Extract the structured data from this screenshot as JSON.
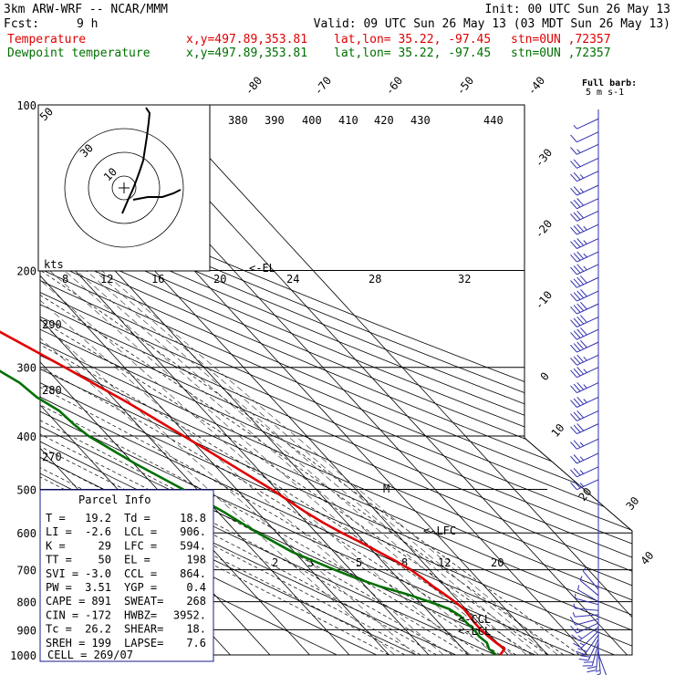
{
  "header": {
    "model": "3km ARW-WRF -- NCAR/MMM",
    "init": "Init: 00 UTC Sun 26 May 13",
    "fcst_label": "Fcst:",
    "fcst_value": "9 h",
    "valid": "Valid: 09 UTC Sun 26 May 13 (03 MDT Sun 26 May 13)",
    "line_temp": {
      "name": "Temperature",
      "xy": "x,y=497.89,353.81",
      "latlon": "lat,lon= 35.22, -97.45",
      "stn": "stn=0UN ,72357"
    },
    "line_dew": {
      "name": "Dewpoint temperature",
      "xy": "x,y=497.89,353.81",
      "latlon": "lat,lon= 35.22, -97.45",
      "stn": "stn=0UN ,72357"
    }
  },
  "colors": {
    "temperature": "#e00000",
    "dewpoint": "#007000",
    "annot": "#1a1a8c",
    "wind": "#3030b0"
  },
  "barb_legend": {
    "line1": "Full barb:",
    "line2": "5 m s-1"
  },
  "parcel_info": {
    "title": "Parcel Info",
    "rows": [
      [
        "T   =",
        "19.2",
        "Td  =",
        "18.8"
      ],
      [
        "LI  =",
        "-2.6",
        "LCL =",
        "906."
      ],
      [
        "K   =",
        "29",
        "LFC =",
        "594."
      ],
      [
        "TT  =",
        "50",
        "EL  =",
        "198"
      ],
      [
        "SVI =",
        "-3.0",
        "CCL =",
        "864."
      ],
      [
        "PW  =",
        "3.51",
        "YGP =",
        "0.4"
      ],
      [
        "CAPE =",
        "891",
        "SWEAT=",
        "268"
      ],
      [
        "CIN =",
        "-172",
        "HWBZ=",
        "3952."
      ],
      [
        "Tc  =",
        "26.2",
        "SHEAR=",
        "18."
      ],
      [
        "SREH =",
        "199",
        "LAPSE=",
        "7.6"
      ]
    ],
    "cell": "CELL = 269/07"
  },
  "hodograph": {
    "ring_labels": [
      "50",
      "30",
      "10"
    ],
    "kts_label": "kts"
  },
  "markers": {
    "el": "<-EL",
    "lfc": "<-LFC",
    "ccl": "<-CCL",
    "lcl": "<-LCL",
    "m": "M"
  },
  "theta_e_labels": [
    "380",
    "390",
    "400",
    "410",
    "420",
    "430",
    "440"
  ],
  "mixing_ratio_labels_top": [
    "8",
    "12",
    "16",
    "20",
    "24",
    "28",
    "32"
  ],
  "mixing_ratio_labels_low": [
    "2",
    "3",
    "5",
    "8",
    "12",
    "20"
  ],
  "theta_labels_left": [
    "290",
    "280",
    "270"
  ],
  "skew_labels_top": [
    "-80",
    "-70",
    "-60",
    "-50",
    "-40"
  ],
  "skew_labels_right": [
    "-30",
    "-20",
    "-10",
    "0",
    "10",
    "20",
    "30",
    "40"
  ],
  "chart_data": {
    "type": "line",
    "title": "",
    "xlabel": "",
    "ylabel": "",
    "y_scale": "log-pressure",
    "y_ticks": [
      100,
      200,
      300,
      400,
      500,
      600,
      700,
      800,
      900,
      1000
    ],
    "series": [
      {
        "name": "Temperature",
        "color": "#e00000",
        "points": [
          [
            1000,
            18.0
          ],
          [
            975,
            20.5
          ],
          [
            950,
            19.8
          ],
          [
            925,
            19.3
          ],
          [
            900,
            19.0
          ],
          [
            875,
            19.0
          ],
          [
            850,
            19.3
          ],
          [
            825,
            19.5
          ],
          [
            800,
            18.9
          ],
          [
            775,
            18.0
          ],
          [
            750,
            17.0
          ],
          [
            725,
            16.2
          ],
          [
            700,
            15.2
          ],
          [
            675,
            13.5
          ],
          [
            650,
            11.3
          ],
          [
            625,
            9.0
          ],
          [
            600,
            6.4
          ],
          [
            575,
            4.1
          ],
          [
            550,
            2.1
          ],
          [
            525,
            0.5
          ],
          [
            500,
            -1.2
          ],
          [
            450,
            -5.8
          ],
          [
            400,
            -11.0
          ],
          [
            350,
            -17.0
          ],
          [
            300,
            -25.0
          ],
          [
            250,
            -35.0
          ],
          [
            225,
            -41.0
          ],
          [
            200,
            -49.0
          ],
          [
            190,
            -51.0
          ],
          [
            175,
            -51.2
          ],
          [
            160,
            -49.5
          ],
          [
            150,
            -48.3
          ],
          [
            130,
            -47.8
          ],
          [
            110,
            -47.4
          ],
          [
            100,
            -47.2
          ]
        ]
      },
      {
        "name": "Dewpoint temperature",
        "color": "#007000",
        "points": [
          [
            1000,
            17.0
          ],
          [
            975,
            16.6
          ],
          [
            950,
            17.5
          ],
          [
            925,
            17.0
          ],
          [
            900,
            17.3
          ],
          [
            875,
            17.0
          ],
          [
            850,
            17.0
          ],
          [
            825,
            15.8
          ],
          [
            800,
            12.5
          ],
          [
            775,
            8.5
          ],
          [
            750,
            3.5
          ],
          [
            725,
            -0.5
          ],
          [
            700,
            -4.0
          ],
          [
            650,
            -10.5
          ],
          [
            600,
            -14.8
          ],
          [
            550,
            -18.5
          ],
          [
            500,
            -23.5
          ],
          [
            450,
            -29.5
          ],
          [
            400,
            -35.0
          ],
          [
            380,
            -36.0
          ],
          [
            360,
            -36.5
          ],
          [
            340,
            -39.0
          ],
          [
            320,
            -40.0
          ],
          [
            300,
            -43.0
          ],
          [
            250,
            -58.0
          ],
          [
            220,
            -65.0
          ],
          [
            200,
            -66.0
          ],
          [
            180,
            -67.0
          ],
          [
            160,
            -67.5
          ],
          [
            140,
            -71.0
          ],
          [
            120,
            -76.0
          ],
          [
            100,
            -83.0
          ]
        ]
      }
    ],
    "winds": [
      {
        "p": 995,
        "speed_ms": 6,
        "dir_deg": 160
      },
      {
        "p": 980,
        "speed_ms": 8,
        "dir_deg": 175
      },
      {
        "p": 965,
        "speed_ms": 10,
        "dir_deg": 185
      },
      {
        "p": 950,
        "speed_ms": 11,
        "dir_deg": 195
      },
      {
        "p": 935,
        "speed_ms": 11,
        "dir_deg": 205
      },
      {
        "p": 920,
        "speed_ms": 10,
        "dir_deg": 215
      },
      {
        "p": 905,
        "speed_ms": 9,
        "dir_deg": 225
      },
      {
        "p": 890,
        "speed_ms": 8,
        "dir_deg": 235
      },
      {
        "p": 875,
        "speed_ms": 7,
        "dir_deg": 245
      },
      {
        "p": 860,
        "speed_ms": 5,
        "dir_deg": 255
      },
      {
        "p": 845,
        "speed_ms": 4,
        "dir_deg": 265
      },
      {
        "p": 830,
        "speed_ms": 3,
        "dir_deg": 275
      },
      {
        "p": 810,
        "speed_ms": 3,
        "dir_deg": 285
      },
      {
        "p": 800,
        "speed_ms": 3,
        "dir_deg": 300
      },
      {
        "p": 780,
        "speed_ms": 2,
        "dir_deg": 310
      },
      {
        "p": 760,
        "speed_ms": 2,
        "dir_deg": 320
      },
      {
        "p": 480,
        "speed_ms": 12,
        "dir_deg": 245
      },
      {
        "p": 455,
        "speed_ms": 12,
        "dir_deg": 245
      },
      {
        "p": 430,
        "speed_ms": 13,
        "dir_deg": 245
      },
      {
        "p": 405,
        "speed_ms": 14,
        "dir_deg": 245
      },
      {
        "p": 380,
        "speed_ms": 15,
        "dir_deg": 245
      },
      {
        "p": 360,
        "speed_ms": 16,
        "dir_deg": 245
      },
      {
        "p": 340,
        "speed_ms": 17,
        "dir_deg": 245
      },
      {
        "p": 320,
        "speed_ms": 18,
        "dir_deg": 245
      },
      {
        "p": 300,
        "speed_ms": 19,
        "dir_deg": 245
      },
      {
        "p": 285,
        "speed_ms": 19,
        "dir_deg": 245
      },
      {
        "p": 270,
        "speed_ms": 20,
        "dir_deg": 245
      },
      {
        "p": 256,
        "speed_ms": 20,
        "dir_deg": 245
      },
      {
        "p": 243,
        "speed_ms": 20,
        "dir_deg": 245
      },
      {
        "p": 230,
        "speed_ms": 20,
        "dir_deg": 245
      },
      {
        "p": 218,
        "speed_ms": 20,
        "dir_deg": 245
      },
      {
        "p": 206,
        "speed_ms": 20,
        "dir_deg": 245
      },
      {
        "p": 195,
        "speed_ms": 19,
        "dir_deg": 245
      },
      {
        "p": 185,
        "speed_ms": 19,
        "dir_deg": 245
      },
      {
        "p": 175,
        "speed_ms": 18,
        "dir_deg": 245
      },
      {
        "p": 165,
        "speed_ms": 17,
        "dir_deg": 245
      },
      {
        "p": 156,
        "speed_ms": 16,
        "dir_deg": 245
      },
      {
        "p": 148,
        "speed_ms": 15,
        "dir_deg": 245
      },
      {
        "p": 140,
        "speed_ms": 14,
        "dir_deg": 245
      },
      {
        "p": 132,
        "speed_ms": 13,
        "dir_deg": 245
      },
      {
        "p": 125,
        "speed_ms": 10,
        "dir_deg": 245
      },
      {
        "p": 118,
        "speed_ms": 8,
        "dir_deg": 245
      },
      {
        "p": 112,
        "speed_ms": 6,
        "dir_deg": 245
      },
      {
        "p": 106,
        "speed_ms": 4,
        "dir_deg": 245
      }
    ]
  }
}
